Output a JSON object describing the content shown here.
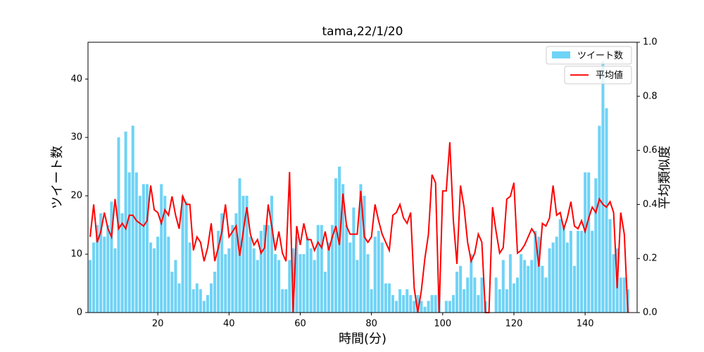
{
  "chart_data": {
    "type": "bar",
    "title": "tama,22/1/20",
    "x_label": "時間(分)",
    "y_label": "ツイート数",
    "y2_label": "平均類似度",
    "x": [
      1,
      2,
      3,
      4,
      5,
      6,
      7,
      8,
      9,
      10,
      11,
      12,
      13,
      14,
      15,
      16,
      17,
      18,
      19,
      20,
      21,
      22,
      23,
      24,
      25,
      26,
      27,
      28,
      29,
      30,
      31,
      32,
      33,
      34,
      35,
      36,
      37,
      38,
      39,
      40,
      41,
      42,
      43,
      44,
      45,
      46,
      47,
      48,
      49,
      50,
      51,
      52,
      53,
      54,
      55,
      56,
      57,
      58,
      59,
      60,
      61,
      62,
      63,
      64,
      65,
      66,
      67,
      68,
      69,
      70,
      71,
      72,
      73,
      74,
      75,
      76,
      77,
      78,
      79,
      80,
      81,
      82,
      83,
      84,
      85,
      86,
      87,
      88,
      89,
      90,
      91,
      92,
      93,
      94,
      95,
      96,
      97,
      98,
      99,
      100,
      101,
      102,
      103,
      104,
      105,
      106,
      107,
      108,
      109,
      110,
      111,
      112,
      113,
      114,
      115,
      116,
      117,
      118,
      119,
      120,
      121,
      122,
      123,
      124,
      125,
      126,
      127,
      128,
      129,
      130,
      131,
      132,
      133,
      134,
      135,
      136,
      137,
      138,
      139,
      140,
      141,
      142,
      143,
      144,
      145,
      146,
      147,
      148,
      149,
      150,
      151,
      152
    ],
    "series": [
      {
        "name": "ツイート数",
        "type": "bar",
        "color": "#6fd3f6",
        "values": [
          9,
          12,
          15,
          17,
          13,
          15,
          19,
          11,
          30,
          17,
          31,
          24,
          32,
          24,
          20,
          22,
          22,
          12,
          11,
          13,
          22,
          20,
          13,
          7,
          9,
          5,
          20,
          19,
          12,
          4,
          5,
          4,
          2,
          3,
          5,
          7,
          14,
          17,
          10,
          11,
          15,
          17,
          23,
          20,
          20,
          13,
          11,
          9,
          14,
          15,
          15,
          20,
          10,
          9,
          4,
          4,
          9,
          11,
          13,
          10,
          10,
          13,
          11,
          9,
          15,
          15,
          7,
          12,
          15,
          23,
          25,
          22,
          15,
          12,
          18,
          9,
          22,
          20,
          10,
          4,
          13,
          14,
          12,
          5,
          5,
          3,
          2,
          4,
          3,
          4,
          3,
          2,
          3,
          2,
          1,
          2,
          3,
          3,
          4,
          0,
          2,
          2,
          3,
          7,
          8,
          4,
          6,
          10,
          6,
          3,
          6,
          2,
          0,
          0,
          6,
          4,
          9,
          4,
          10,
          5,
          6,
          10,
          9,
          8,
          9,
          14,
          13,
          8,
          6,
          11,
          12,
          13,
          16,
          15,
          12,
          14,
          8,
          14,
          14,
          24,
          24,
          14,
          23,
          32,
          43,
          35,
          16,
          10,
          11,
          6,
          6,
          4
        ]
      },
      {
        "name": "平均値",
        "type": "line",
        "axis": "y2",
        "color": "#ff0000",
        "values": [
          0.28,
          0.4,
          0.26,
          0.3,
          0.37,
          0.31,
          0.28,
          0.42,
          0.31,
          0.33,
          0.31,
          0.36,
          0.36,
          0.34,
          0.33,
          0.32,
          0.34,
          0.47,
          0.38,
          0.37,
          0.33,
          0.38,
          0.36,
          0.43,
          0.36,
          0.31,
          0.43,
          0.4,
          0.4,
          0.23,
          0.28,
          0.26,
          0.19,
          0.24,
          0.33,
          0.19,
          0.24,
          0.3,
          0.4,
          0.28,
          0.3,
          0.32,
          0.21,
          0.3,
          0.39,
          0.29,
          0.25,
          0.27,
          0.22,
          0.24,
          0.4,
          0.32,
          0.23,
          0.3,
          0.22,
          0.19,
          0.52,
          0,
          0.32,
          0.25,
          0.33,
          0.27,
          0.27,
          0.23,
          0.26,
          0.24,
          0.3,
          0.23,
          0.28,
          0.32,
          0.25,
          0.44,
          0.32,
          0.29,
          0.29,
          0.29,
          0.45,
          0.28,
          0.26,
          0.28,
          0.4,
          0.34,
          0.29,
          0.26,
          0.23,
          0.36,
          0.37,
          0.4,
          0.35,
          0.33,
          0.37,
          0.09,
          0,
          0.08,
          0.2,
          0.29,
          0.51,
          0.48,
          0,
          0.45,
          0.45,
          0.63,
          0.34,
          0.18,
          0.47,
          0.39,
          0.26,
          0.19,
          0.22,
          0.29,
          0.26,
          0,
          0,
          0.39,
          0.3,
          0.22,
          0.24,
          0.42,
          0.43,
          0.48,
          0.22,
          0.23,
          0.25,
          0.28,
          0.31,
          0.29,
          0.17,
          0.33,
          0.32,
          0.35,
          0.47,
          0.36,
          0.37,
          0.31,
          0.35,
          0.41,
          0.32,
          0.31,
          0.34,
          0.3,
          0.35,
          0.39,
          0.37,
          0.42,
          0.4,
          0.39,
          0.41,
          0.37,
          0.09,
          0.37,
          0.29,
          0
        ]
      }
    ],
    "xlim": [
      0.4,
      154.6
    ],
    "xticks": [
      20,
      40,
      60,
      80,
      100,
      120,
      140
    ],
    "ylim": [
      0,
      46.3
    ],
    "yticks": [
      0,
      10,
      20,
      30,
      40
    ],
    "y2lim": [
      0,
      1
    ],
    "y2ticks": [
      {
        "value": 0,
        "label": "0.0"
      },
      {
        "value": 0.2,
        "label": "0.2"
      },
      {
        "value": 0.4,
        "label": "0.4"
      },
      {
        "value": 0.6,
        "label": "0.6"
      },
      {
        "value": 0.8,
        "label": "0.8"
      },
      {
        "value": 1,
        "label": "1.0"
      }
    ],
    "legend": "upper right"
  }
}
